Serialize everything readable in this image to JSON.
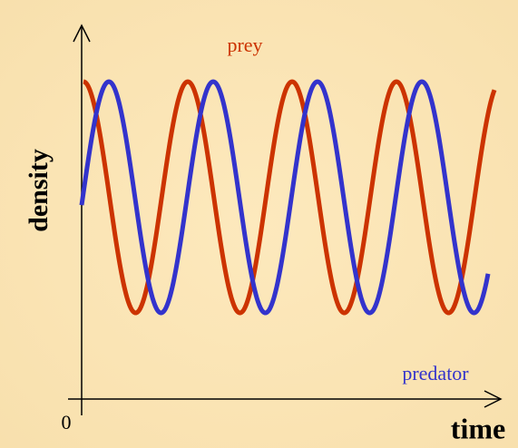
{
  "labels": {
    "prey": "prey",
    "predator": "predator",
    "y_axis": "density",
    "x_axis": "time",
    "origin": "0"
  }
}
